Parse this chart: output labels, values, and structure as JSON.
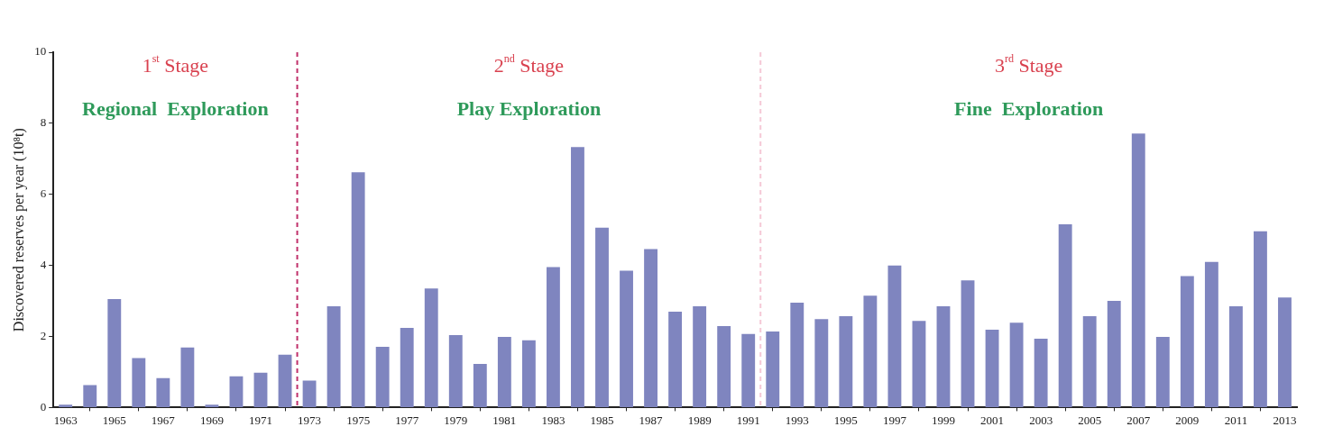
{
  "chart_data": {
    "type": "bar",
    "ylabel": "Discovered reserves per year (10⁸t)",
    "x": [
      1963,
      1964,
      1965,
      1966,
      1967,
      1968,
      1969,
      1970,
      1971,
      1972,
      1973,
      1974,
      1975,
      1976,
      1977,
      1978,
      1979,
      1980,
      1981,
      1982,
      1983,
      1984,
      1985,
      1986,
      1987,
      1988,
      1989,
      1990,
      1991,
      1992,
      1993,
      1994,
      1995,
      1996,
      1997,
      1998,
      1999,
      2000,
      2001,
      2002,
      2003,
      2004,
      2005,
      2006,
      2007,
      2008,
      2009,
      2010,
      2011,
      2012,
      2013
    ],
    "values": [
      0.08,
      0.63,
      3.05,
      1.39,
      0.83,
      1.69,
      0.08,
      0.88,
      0.98,
      1.49,
      0.76,
      2.85,
      6.62,
      1.71,
      2.24,
      3.35,
      2.04,
      1.23,
      1.99,
      1.89,
      3.95,
      7.33,
      5.06,
      3.85,
      4.46,
      2.7,
      2.85,
      2.29,
      2.07,
      2.14,
      2.95,
      2.49,
      2.57,
      3.15,
      4.0,
      2.44,
      2.85,
      3.58,
      2.19,
      2.39,
      1.94,
      5.16,
      2.57,
      3.0,
      7.71,
      1.99,
      3.7,
      4.1,
      2.85,
      4.96,
      3.1
    ],
    "color": "#7f85bf",
    "xlim": [
      1962.5,
      2013.5
    ],
    "xticks": [
      1963,
      1965,
      1967,
      1969,
      1971,
      1973,
      1975,
      1977,
      1979,
      1981,
      1983,
      1985,
      1987,
      1989,
      1991,
      1993,
      1995,
      1997,
      1999,
      2001,
      2003,
      2005,
      2007,
      2009,
      2011,
      2013
    ],
    "ylim": [
      0,
      10
    ],
    "yticks": [
      0,
      2,
      4,
      6,
      8,
      10
    ],
    "grid": false,
    "ref_lines": [
      {
        "axis": "x",
        "value": 1972.5,
        "color": "#c0306a",
        "line_style": "dashed"
      },
      {
        "axis": "x",
        "value": 1991.5,
        "color": "#f5c8d6",
        "line_style": "dashed"
      }
    ],
    "annotations": [
      "1$^{st}$ Stage",
      "Regional  Exploration",
      "2$^{nd}$ Stage",
      "Play Exploration",
      "3$^{rd}$ Stage",
      "Fine  Exploration"
    ]
  }
}
